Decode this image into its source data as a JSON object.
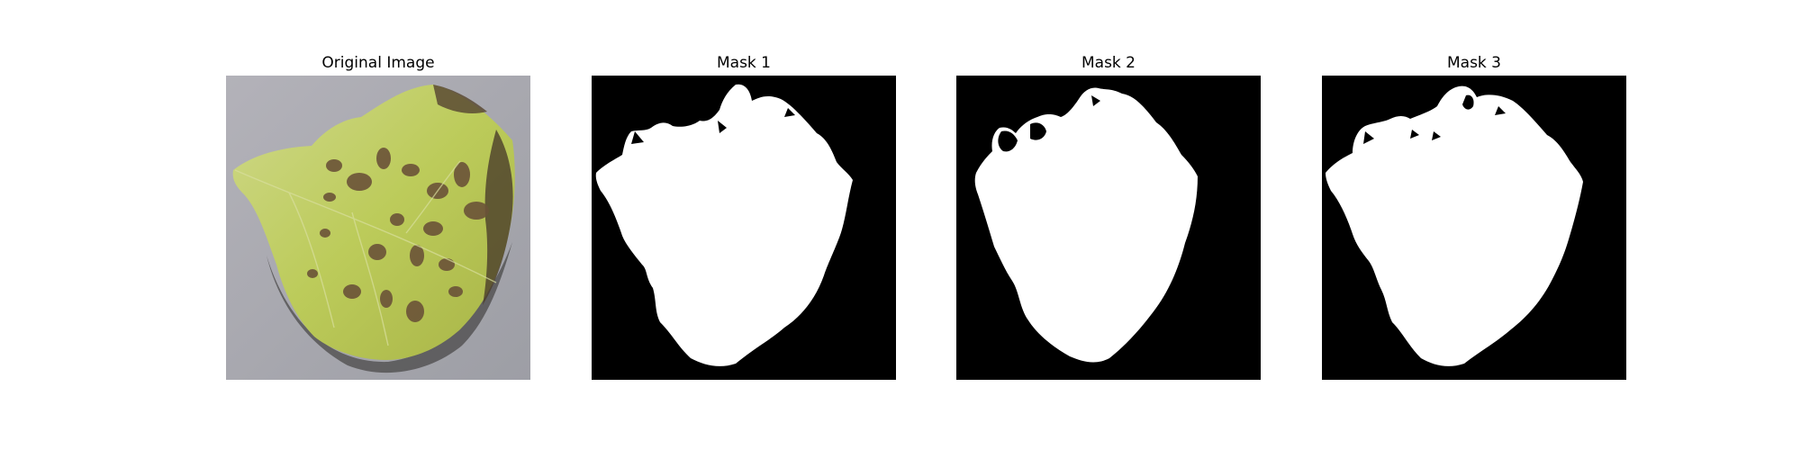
{
  "panels": [
    {
      "title": "Original Image",
      "content": "photo of a diseased green leaf with brown lesions on a grey background"
    },
    {
      "title": "Mask 1",
      "content": "binary segmentation mask (white leaf region on black)"
    },
    {
      "title": "Mask 2",
      "content": "binary segmentation mask (white leaf region on black)"
    },
    {
      "title": "Mask 3",
      "content": "binary segmentation mask (white leaf region on black)"
    }
  ],
  "colors": {
    "background": "#ffffff",
    "mask_background": "#000000",
    "mask_foreground": "#ffffff",
    "leaf_green": "#c7d35c",
    "lesion_brown": "#6b5338",
    "photo_background": "#a9a9ae"
  }
}
